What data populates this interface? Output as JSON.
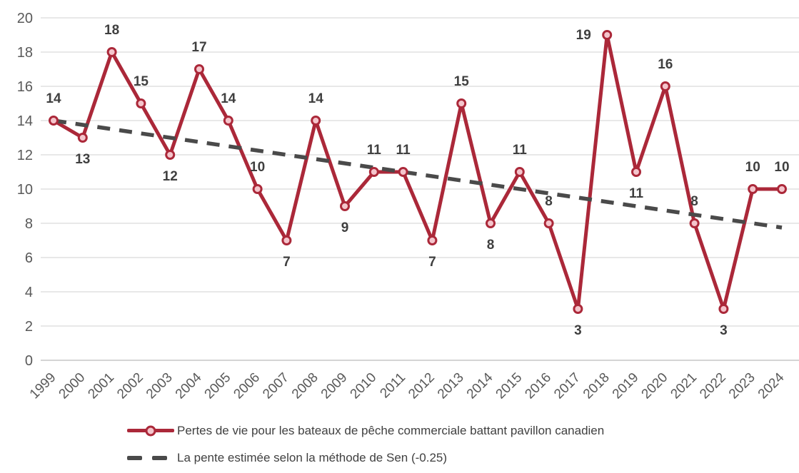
{
  "chart_data": {
    "type": "line",
    "title": "",
    "xlabel": "",
    "ylabel": "",
    "categories": [
      "1999",
      "2000",
      "2001",
      "2002",
      "2003",
      "2004",
      "2005",
      "2006",
      "2007",
      "2008",
      "2009",
      "2010",
      "2011",
      "2012",
      "2013",
      "2014",
      "2015",
      "2016",
      "2017",
      "2018",
      "2019",
      "2020",
      "2021",
      "2022",
      "2023",
      "2024"
    ],
    "series": [
      {
        "name": "Pertes de vie pour les bateaux de pêche commerciale battant pavillon canadien",
        "type": "line-with-markers",
        "values": [
          14,
          13,
          18,
          15,
          12,
          17,
          14,
          10,
          7,
          14,
          9,
          11,
          11,
          7,
          15,
          8,
          11,
          8,
          3,
          19,
          11,
          16,
          8,
          3,
          10,
          10
        ],
        "color": "#AB2839",
        "marker_fill": "#F4C5CC",
        "data_labels_shown": true,
        "label_positions": [
          "above",
          "below",
          "above",
          "above",
          "below",
          "above",
          "above",
          "above",
          "below",
          "above",
          "below",
          "above",
          "above",
          "below",
          "above",
          "below",
          "above",
          "above",
          "below",
          "left",
          "below",
          "above",
          "above",
          "below",
          "above",
          "above"
        ]
      },
      {
        "name": "La pente estimée selon la méthode de Sen (-0.25)",
        "type": "trend-dashed",
        "slope_per_year": -0.25,
        "start_value": 14.0,
        "end_value": 7.75,
        "color": "#4A4A4A"
      }
    ],
    "ylim": [
      0,
      20
    ],
    "yticks": [
      0,
      2,
      4,
      6,
      8,
      10,
      12,
      14,
      16,
      18,
      20
    ],
    "grid": "horizontal",
    "gridline_color": "#D9D9D9",
    "axisline_color": "#C6C6C6",
    "axis_label_color": "#595959",
    "data_label_color": "#3F3F3F",
    "x_label_rotation_deg": -45,
    "legend_position": "bottom-left"
  }
}
